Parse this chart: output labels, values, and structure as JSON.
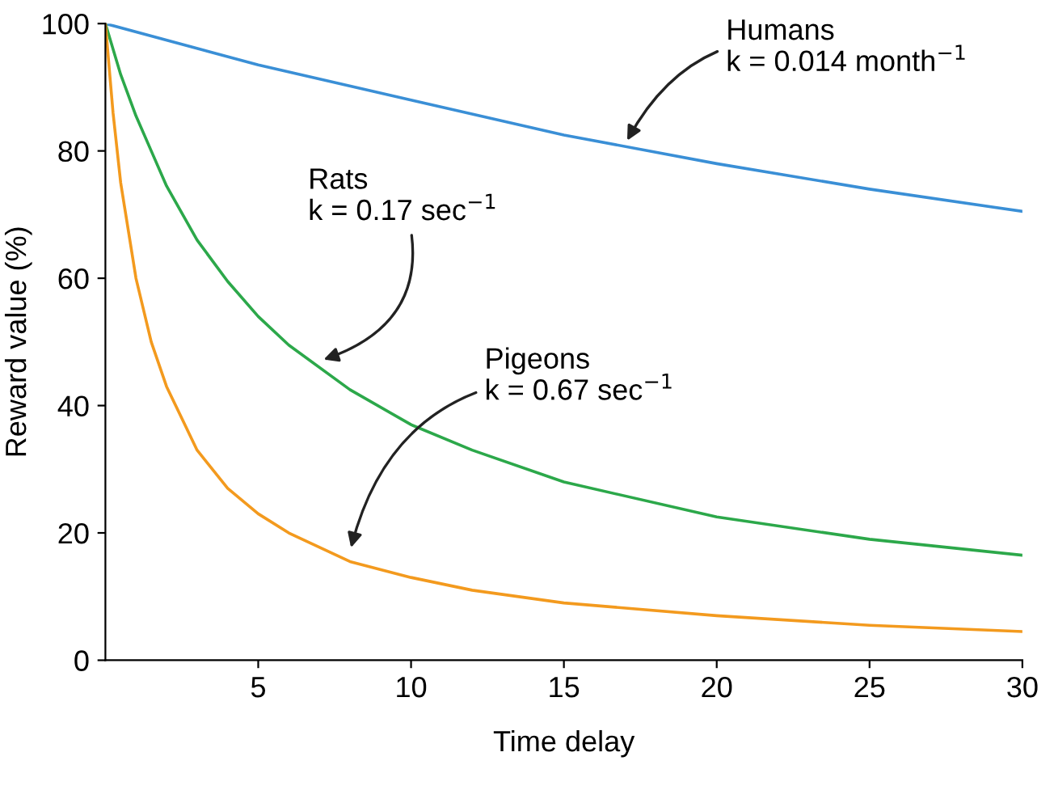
{
  "chart_data": {
    "type": "line",
    "xlabel": "Time delay",
    "ylabel": "Reward value (%)",
    "xlim": [
      0,
      30
    ],
    "ylim": [
      0,
      100
    ],
    "xticks": [
      5,
      10,
      15,
      20,
      25,
      30
    ],
    "yticks": [
      0,
      20,
      40,
      60,
      80,
      100
    ],
    "grid": false,
    "legend": false,
    "marker": "none",
    "line_style": "solid",
    "series": [
      {
        "color": "#3a8fd6",
        "x": [
          0,
          5,
          10,
          15,
          20,
          25,
          30
        ],
        "values": [
          100,
          93.5,
          88,
          82.5,
          78,
          74,
          70.5
        ]
      },
      {
        "color": "#2ca84a",
        "x": [
          0,
          0.5,
          1,
          1.5,
          2,
          3,
          4,
          5,
          6,
          8,
          10,
          12,
          15,
          20,
          25,
          30
        ],
        "values": [
          100,
          92,
          85.5,
          80,
          74.5,
          66,
          59.5,
          54,
          49.5,
          42.5,
          37,
          33,
          28,
          22.5,
          19,
          16.5
        ]
      },
      {
        "color": "#f39a1e",
        "x": [
          0,
          0.25,
          0.5,
          1,
          1.5,
          2,
          3,
          4,
          5,
          6,
          8,
          10,
          12,
          15,
          20,
          25,
          30
        ],
        "values": [
          100,
          86,
          75,
          60,
          50,
          43,
          33,
          27,
          23,
          20,
          15.5,
          13,
          11,
          9,
          7,
          5.5,
          4.5
        ]
      }
    ],
    "annotations": [
      {
        "text": "Humans\nk = 0.014 month$^{−1}$",
        "x": 17,
        "y": 81
      },
      {
        "text": "Rats\nk = 0.17 sec$^{−1}$",
        "x": 7,
        "y": 47
      },
      {
        "text": "Pigeons\nk = 0.67 sec$^{−1}$",
        "x": 8,
        "y": 17
      }
    ]
  }
}
